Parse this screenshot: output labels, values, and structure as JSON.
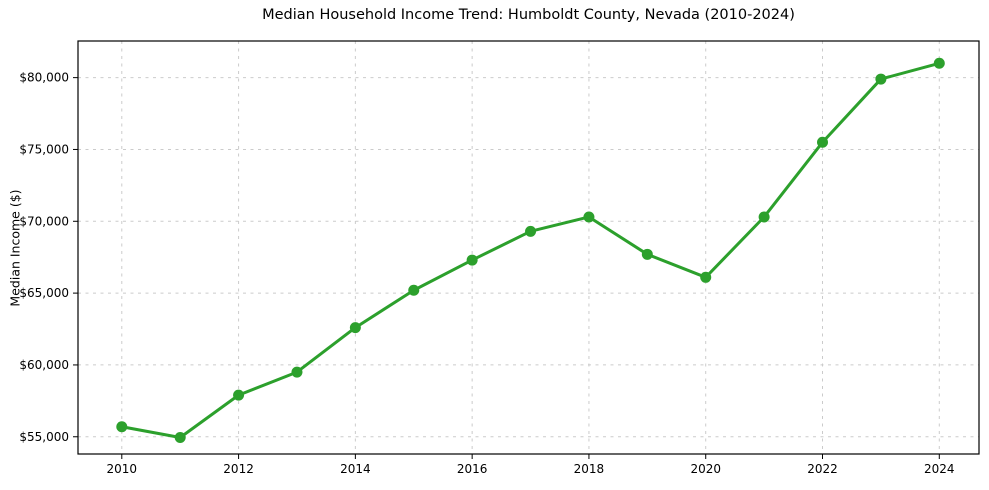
{
  "figure": {
    "background": "#ffffff"
  },
  "chart_data": {
    "type": "line",
    "title": "Median Household Income Trend: Humboldt County, Nevada (2010-2024)",
    "xlabel": "",
    "ylabel": "Median Income ($)",
    "x": [
      2010,
      2011,
      2012,
      2013,
      2014,
      2015,
      2016,
      2017,
      2018,
      2019,
      2020,
      2021,
      2022,
      2023,
      2024
    ],
    "series": [
      {
        "name": "Median Household Income",
        "values": [
          55700,
          54950,
          57900,
          59500,
          62600,
          65200,
          67300,
          69300,
          70300,
          67700,
          66100,
          70300,
          75500,
          79900,
          81000
        ],
        "color": "#2ca02c",
        "marker": "circle"
      }
    ],
    "xticks": {
      "values": [
        2010,
        2012,
        2014,
        2016,
        2018,
        2020,
        2022,
        2024
      ],
      "labels": [
        "2010",
        "2012",
        "2014",
        "2016",
        "2018",
        "2020",
        "2022",
        "2024"
      ]
    },
    "yticks": {
      "values": [
        55000,
        60000,
        65000,
        70000,
        75000,
        80000
      ],
      "labels": [
        "$55,000",
        "$60,000",
        "$65,000",
        "$70,000",
        "$75,000",
        "$80,000"
      ]
    },
    "xlim": [
      2009.25,
      2024.68
    ],
    "ylim": [
      53800,
      82550
    ],
    "grid": true,
    "grid_style": "dashed",
    "legend_position": "none",
    "colors": {
      "line": "#2ca02c",
      "grid": "#cbcbcb",
      "spine": "#000000",
      "tick": "#000000",
      "text": "#000000",
      "background": "#ffffff"
    }
  }
}
